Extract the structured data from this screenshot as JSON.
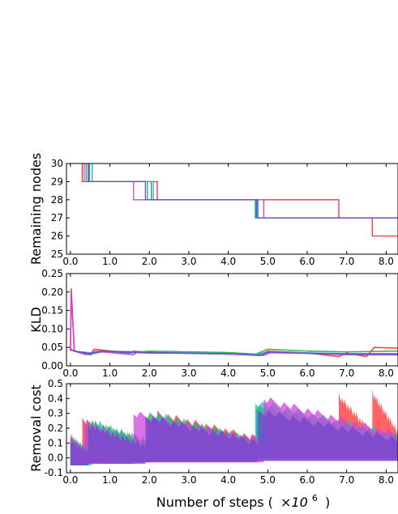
{
  "figure": {
    "xlabel_main": "Number of steps (",
    "xlabel_factor": "×10",
    "xlabel_exp": "6",
    "xlabel_close": ")"
  },
  "chart_data": [
    {
      "type": "line",
      "ylabel": "Remaining nodes",
      "xlim": [
        -0.1,
        8.3
      ],
      "ylim": [
        25,
        30
      ],
      "xticks": [
        "0.0",
        "1.0",
        "2.0",
        "3.0",
        "4.0",
        "5.0",
        "6.0",
        "7.0",
        "8.0"
      ],
      "yticks": [
        "25",
        "26",
        "27",
        "28",
        "29",
        "30"
      ],
      "series": [
        {
          "color": "#ff3030",
          "steps": [
            [
              0.3,
              30
            ],
            [
              0.3,
              29
            ],
            [
              2.2,
              29
            ],
            [
              2.2,
              28
            ],
            [
              4.95,
              28
            ],
            [
              4.95,
              28
            ],
            [
              6.8,
              28
            ],
            [
              6.8,
              27
            ],
            [
              7.65,
              27
            ],
            [
              7.65,
              26
            ],
            [
              8.3,
              26
            ]
          ]
        },
        {
          "color": "#20b040",
          "steps": [
            [
              0.4,
              30
            ],
            [
              0.4,
              29
            ],
            [
              1.95,
              29
            ],
            [
              1.95,
              28
            ],
            [
              4.7,
              28
            ],
            [
              4.7,
              27
            ],
            [
              8.3,
              27
            ]
          ]
        },
        {
          "color": "#1f77d4",
          "steps": [
            [
              0.48,
              30
            ],
            [
              0.48,
              29
            ],
            [
              2.05,
              29
            ],
            [
              2.05,
              28
            ],
            [
              4.72,
              28
            ],
            [
              4.72,
              27
            ],
            [
              8.3,
              27
            ]
          ]
        },
        {
          "color": "#20c0b0",
          "steps": [
            [
              0.55,
              30
            ],
            [
              0.55,
              29
            ],
            [
              2.1,
              29
            ],
            [
              2.1,
              28
            ],
            [
              4.68,
              28
            ],
            [
              4.68,
              27
            ],
            [
              8.3,
              27
            ]
          ]
        },
        {
          "color": "#cc44dd",
          "steps": [
            [
              0.35,
              30
            ],
            [
              0.35,
              29
            ],
            [
              1.6,
              29
            ],
            [
              1.6,
              28
            ],
            [
              4.9,
              28
            ],
            [
              4.9,
              27
            ],
            [
              8.3,
              27
            ]
          ]
        },
        {
          "color": "#7744cc",
          "steps": [
            [
              0.45,
              30
            ],
            [
              0.45,
              29
            ],
            [
              1.9,
              29
            ],
            [
              1.9,
              28
            ],
            [
              4.75,
              28
            ],
            [
              4.75,
              27
            ],
            [
              8.3,
              27
            ]
          ]
        }
      ]
    },
    {
      "type": "line",
      "ylabel": "KLD",
      "xlim": [
        -0.1,
        8.3
      ],
      "ylim": [
        0.0,
        0.25
      ],
      "xticks": [
        "0.0",
        "1.0",
        "2.0",
        "3.0",
        "4.0",
        "5.0",
        "6.0",
        "7.0",
        "8.0"
      ],
      "yticks": [
        "0.00",
        "0.05",
        "0.10",
        "0.15",
        "0.20",
        "0.25"
      ],
      "series": [
        {
          "color": "#ff3030",
          "x": [
            0.0,
            0.02,
            0.1,
            0.5,
            0.6,
            1.5,
            1.6,
            2.2,
            3.0,
            4.0,
            4.8,
            5.0,
            6.0,
            6.8,
            7.0,
            7.5,
            7.7,
            8.3
          ],
          "y": [
            0.04,
            0.21,
            0.04,
            0.03,
            0.045,
            0.035,
            0.04,
            0.035,
            0.035,
            0.035,
            0.03,
            0.04,
            0.035,
            0.025,
            0.035,
            0.025,
            0.05,
            0.048
          ]
        },
        {
          "color": "#20b040",
          "x": [
            0.0,
            0.1,
            0.5,
            0.7,
            1.5,
            2.0,
            3.0,
            4.0,
            4.7,
            5.0,
            6.0,
            7.0,
            8.3
          ],
          "y": [
            0.045,
            0.04,
            0.03,
            0.04,
            0.035,
            0.04,
            0.038,
            0.036,
            0.032,
            0.045,
            0.04,
            0.038,
            0.04
          ]
        },
        {
          "color": "#1f77d4",
          "x": [
            0.0,
            0.1,
            0.5,
            0.8,
            2.0,
            3.0,
            4.0,
            4.7,
            5.0,
            6.0,
            7.0,
            8.3
          ],
          "y": [
            0.045,
            0.04,
            0.032,
            0.038,
            0.035,
            0.035,
            0.033,
            0.03,
            0.038,
            0.035,
            0.033,
            0.033
          ]
        },
        {
          "color": "#20c0b0",
          "x": [
            0.0,
            0.1,
            0.55,
            0.9,
            2.1,
            3.0,
            4.0,
            4.7,
            5.0,
            6.0,
            7.0,
            8.3
          ],
          "y": [
            0.045,
            0.04,
            0.035,
            0.04,
            0.037,
            0.036,
            0.034,
            0.03,
            0.037,
            0.035,
            0.033,
            0.032
          ]
        },
        {
          "color": "#cc44dd",
          "x": [
            0.0,
            0.02,
            0.1,
            0.4,
            0.6,
            1.6,
            1.7,
            2.0,
            3.0,
            4.0,
            4.9,
            5.1,
            6.0,
            7.0,
            8.3
          ],
          "y": [
            0.045,
            0.2,
            0.04,
            0.03,
            0.04,
            0.03,
            0.038,
            0.035,
            0.034,
            0.032,
            0.028,
            0.038,
            0.034,
            0.03,
            0.03
          ]
        },
        {
          "color": "#7744cc",
          "x": [
            0.0,
            0.1,
            0.5,
            0.8,
            2.0,
            3.0,
            4.0,
            4.8,
            5.0,
            6.0,
            7.0,
            8.3
          ],
          "y": [
            0.045,
            0.04,
            0.033,
            0.04,
            0.036,
            0.034,
            0.033,
            0.028,
            0.036,
            0.034,
            0.032,
            0.031
          ]
        }
      ]
    },
    {
      "type": "area",
      "ylabel": "Removal cost",
      "xlim": [
        -0.1,
        8.3
      ],
      "ylim": [
        -0.1,
        0.5
      ],
      "xticks": [
        "0.0",
        "1.0",
        "2.0",
        "3.0",
        "4.0",
        "5.0",
        "6.0",
        "7.0",
        "8.0"
      ],
      "yticks": [
        "-0.1",
        "0.0",
        "0.1",
        "0.2",
        "0.3",
        "0.4",
        "0.5"
      ],
      "bands": [
        {
          "color": "#ff3030",
          "segments": [
            [
              0.0,
              0.3,
              0.15,
              -0.05
            ],
            [
              0.3,
              2.2,
              0.25,
              0.0
            ],
            [
              2.2,
              4.95,
              0.3,
              0.05
            ],
            [
              4.95,
              6.8,
              0.3,
              0.05
            ],
            [
              6.8,
              7.65,
              0.42,
              0.1
            ],
            [
              7.65,
              8.3,
              0.44,
              0.1
            ]
          ]
        },
        {
          "color": "#20b040",
          "segments": [
            [
              0.0,
              0.4,
              0.15,
              -0.05
            ],
            [
              0.4,
              1.95,
              0.25,
              -0.02
            ],
            [
              1.95,
              4.7,
              0.3,
              0.0
            ],
            [
              4.7,
              8.3,
              0.35,
              0.02
            ]
          ]
        },
        {
          "color": "#1f77d4",
          "segments": [
            [
              0.0,
              0.48,
              0.12,
              -0.05
            ],
            [
              0.48,
              2.05,
              0.2,
              -0.03
            ],
            [
              2.05,
              4.72,
              0.25,
              -0.02
            ],
            [
              4.72,
              8.3,
              0.3,
              0.0
            ]
          ]
        },
        {
          "color": "#20c0b0",
          "segments": [
            [
              0.0,
              0.55,
              0.12,
              -0.05
            ],
            [
              0.55,
              2.1,
              0.25,
              -0.03
            ],
            [
              2.1,
              4.68,
              0.3,
              -0.02
            ],
            [
              4.68,
              8.3,
              0.38,
              0.0
            ]
          ]
        },
        {
          "color": "#cc44dd",
          "segments": [
            [
              0.0,
              0.35,
              0.14,
              -0.05
            ],
            [
              0.35,
              1.6,
              0.25,
              -0.04
            ],
            [
              1.6,
              4.9,
              0.3,
              -0.03
            ],
            [
              4.9,
              8.3,
              0.4,
              -0.02
            ]
          ]
        },
        {
          "color": "#7744cc",
          "segments": [
            [
              0.0,
              0.45,
              0.12,
              -0.05
            ],
            [
              0.45,
              1.9,
              0.22,
              -0.04
            ],
            [
              1.9,
              4.75,
              0.28,
              -0.03
            ],
            [
              4.75,
              8.3,
              0.32,
              -0.02
            ]
          ]
        }
      ]
    }
  ]
}
